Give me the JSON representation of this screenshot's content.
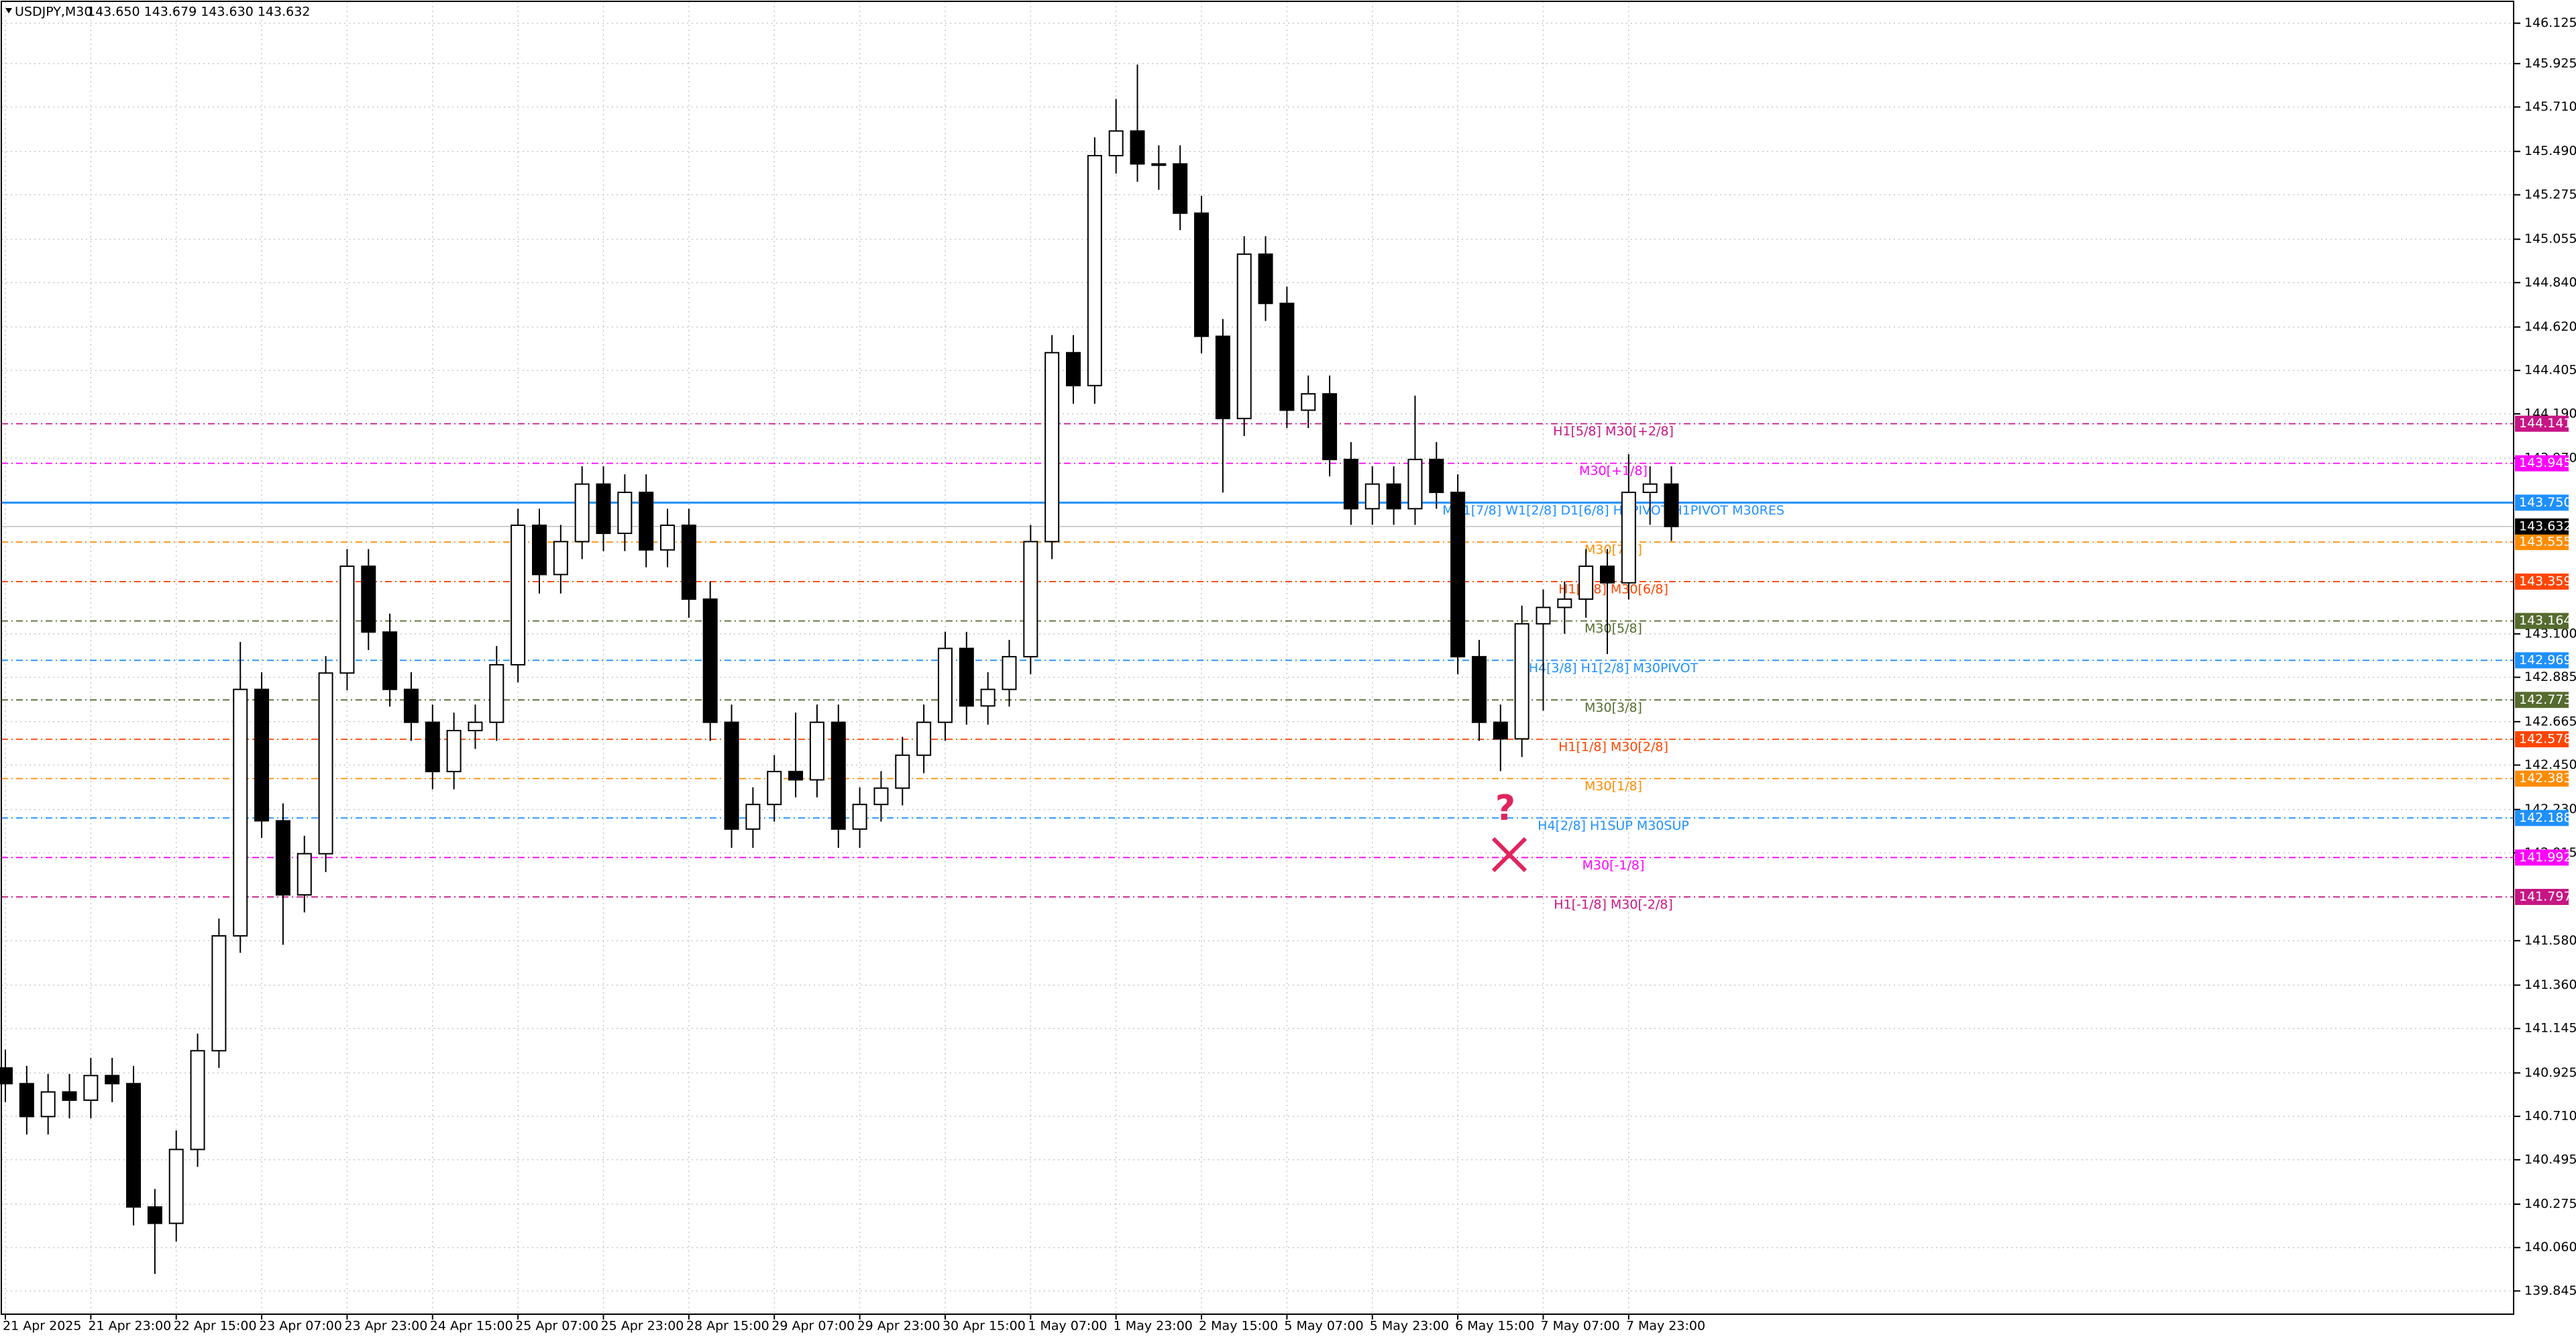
{
  "chart_data": {
    "type": "candlestick",
    "title": "USDJPY,M30",
    "header_prices": "143.650 143.679 143.630 143.632",
    "ylim": [
      139.73,
      146.24
    ],
    "grid": true,
    "bull_color": "#ffffff",
    "bear_color": "#000000",
    "yticks": [
      {
        "value": 146.125,
        "label": "146.125"
      },
      {
        "value": 145.925,
        "label": "145.925"
      },
      {
        "value": 145.71,
        "label": "145.710"
      },
      {
        "value": 145.49,
        "label": "145.490"
      },
      {
        "value": 145.275,
        "label": "145.275"
      },
      {
        "value": 145.055,
        "label": "145.055"
      },
      {
        "value": 144.84,
        "label": "144.840"
      },
      {
        "value": 144.62,
        "label": "144.620"
      },
      {
        "value": 144.405,
        "label": "144.405"
      },
      {
        "value": 144.19,
        "label": "144.190"
      },
      {
        "value": 143.97,
        "label": "143.970"
      },
      {
        "value": 143.1,
        "label": "143.100"
      },
      {
        "value": 142.885,
        "label": "142.885"
      },
      {
        "value": 142.665,
        "label": "142.665"
      },
      {
        "value": 142.45,
        "label": "142.450"
      },
      {
        "value": 142.23,
        "label": "142.230"
      },
      {
        "value": 142.015,
        "label": "142.015"
      },
      {
        "value": 141.58,
        "label": "141.580"
      },
      {
        "value": 141.36,
        "label": "141.360"
      },
      {
        "value": 141.145,
        "label": "141.145"
      },
      {
        "value": 140.925,
        "label": "140.925"
      },
      {
        "value": 140.71,
        "label": "140.710"
      },
      {
        "value": 140.495,
        "label": "140.495"
      },
      {
        "value": 140.275,
        "label": "140.275"
      },
      {
        "value": 140.06,
        "label": "140.060"
      },
      {
        "value": 139.845,
        "label": "139.845"
      }
    ],
    "x_labels": [
      "21 Apr 2025",
      "21 Apr 23:00",
      "22 Apr 15:00",
      "23 Apr 07:00",
      "23 Apr 23:00",
      "24 Apr 15:00",
      "25 Apr 07:00",
      "25 Apr 23:00",
      "28 Apr 15:00",
      "29 Apr 07:00",
      "29 Apr 23:00",
      "30 Apr 15:00",
      "1 May 07:00",
      "1 May 23:00",
      "2 May 15:00",
      "5 May 07:00",
      "5 May 23:00",
      "6 May 15:00",
      "7 May 07:00",
      "7 May 23:00"
    ],
    "open": [
      140.95,
      140.872,
      140.709,
      140.831,
      140.79,
      140.912,
      140.872,
      140.261,
      140.18,
      140.546,
      141.035,
      141.604,
      142.825,
      142.174,
      141.807,
      142.011,
      142.906,
      143.435,
      143.109,
      142.825,
      142.662,
      142.418,
      142.621,
      142.662,
      142.947,
      143.638,
      143.394,
      143.557,
      143.842,
      143.598,
      143.801,
      143.516,
      143.638,
      143.272,
      142.662,
      142.133,
      142.255,
      142.418,
      142.377,
      142.662,
      142.133,
      142.255,
      142.336,
      142.499,
      142.662,
      143.028,
      142.743,
      142.825,
      142.987,
      143.557,
      144.493,
      144.33,
      145.469,
      145.591,
      145.428,
      145.428,
      145.184,
      144.574,
      144.167,
      144.981,
      144.737,
      144.208,
      144.289,
      143.964,
      143.72,
      143.842,
      143.72,
      143.964,
      143.801,
      142.987,
      142.662,
      142.58,
      143.15,
      143.231,
      143.272,
      143.435,
      143.353,
      143.801,
      143.842
    ],
    "high": [
      141.04,
      140.96,
      140.92,
      140.92,
      141.0,
      141.0,
      140.96,
      140.35,
      140.64,
      141.12,
      141.69,
      143.06,
      142.91,
      142.26,
      142.1,
      142.99,
      143.52,
      143.52,
      143.2,
      142.91,
      142.75,
      142.71,
      142.75,
      143.04,
      143.72,
      143.72,
      143.64,
      143.93,
      143.93,
      143.89,
      143.89,
      143.72,
      143.72,
      143.36,
      142.75,
      142.34,
      142.5,
      142.71,
      142.75,
      142.75,
      142.34,
      142.42,
      142.59,
      142.75,
      143.11,
      143.11,
      142.91,
      143.07,
      143.64,
      144.58,
      144.58,
      145.56,
      145.75,
      145.92,
      145.52,
      145.52,
      145.27,
      144.66,
      145.07,
      145.07,
      144.82,
      144.38,
      144.38,
      144.05,
      143.93,
      143.93,
      144.28,
      144.05,
      143.89,
      143.07,
      142.75,
      143.24,
      143.32,
      143.36,
      143.52,
      143.52,
      143.99,
      143.93,
      143.93
    ],
    "low": [
      140.78,
      140.62,
      140.62,
      140.7,
      140.7,
      140.78,
      140.17,
      139.93,
      140.09,
      140.46,
      140.95,
      141.52,
      142.09,
      141.56,
      141.72,
      141.92,
      142.82,
      143.02,
      142.74,
      142.57,
      142.33,
      142.33,
      142.53,
      142.57,
      142.86,
      143.3,
      143.3,
      143.47,
      143.51,
      143.51,
      143.43,
      143.43,
      143.18,
      142.57,
      142.04,
      142.04,
      142.17,
      142.29,
      142.29,
      142.04,
      142.04,
      142.17,
      142.25,
      142.41,
      142.57,
      142.65,
      142.65,
      142.74,
      142.9,
      143.47,
      144.24,
      144.24,
      145.38,
      145.34,
      145.3,
      145.1,
      144.49,
      143.8,
      144.08,
      144.65,
      144.12,
      144.12,
      143.88,
      143.64,
      143.64,
      143.64,
      143.64,
      143.72,
      142.9,
      142.57,
      142.42,
      142.49,
      142.72,
      143.1,
      143.18,
      143.0,
      143.27,
      143.64,
      143.56
    ],
    "close": [
      140.872,
      140.709,
      140.831,
      140.79,
      140.912,
      140.872,
      140.261,
      140.18,
      140.546,
      141.035,
      141.604,
      142.825,
      142.174,
      141.807,
      142.011,
      142.906,
      143.435,
      143.109,
      142.825,
      142.662,
      142.418,
      142.621,
      142.662,
      142.947,
      143.638,
      143.394,
      143.557,
      143.842,
      143.598,
      143.801,
      143.516,
      143.638,
      143.272,
      142.662,
      142.133,
      142.255,
      142.418,
      142.377,
      142.662,
      142.133,
      142.255,
      142.336,
      142.499,
      142.662,
      143.028,
      142.743,
      142.825,
      142.987,
      143.557,
      144.493,
      144.33,
      145.469,
      145.591,
      145.428,
      145.428,
      145.184,
      144.574,
      144.167,
      144.981,
      144.737,
      144.208,
      144.289,
      143.964,
      143.72,
      143.842,
      143.72,
      143.964,
      143.801,
      142.987,
      142.662,
      142.58,
      143.15,
      143.231,
      143.272,
      143.435,
      143.353,
      143.801,
      143.842,
      143.632
    ],
    "current_price": 143.632,
    "current_color": "#000000",
    "levels": [
      {
        "value": 144.141,
        "label": "144.141",
        "text": "H1[5/8] M30[+2/8]",
        "color": "#c71585",
        "solid": false
      },
      {
        "value": 143.945,
        "label": "143.945",
        "text": "M30[+1/8]",
        "color": "#ff00ff",
        "solid": false
      },
      {
        "value": 143.75,
        "label": "143.750",
        "text": "MN1[7/8] W1[2/8] D1[6/8] H4PIVOT H1PIVOT M30RES",
        "color": "#1e90ff",
        "solid": true
      },
      {
        "value": 143.555,
        "label": "143.555",
        "text": "M30[7/8]",
        "color": "#ff8c00",
        "solid": false
      },
      {
        "value": 143.359,
        "label": "143.359",
        "text": "H1[3/8] M30[6/8]",
        "color": "#ff4500",
        "solid": false
      },
      {
        "value": 143.164,
        "label": "143.164",
        "text": "M30[5/8]",
        "color": "#556b2f",
        "solid": false
      },
      {
        "value": 142.969,
        "label": "142.969",
        "text": "H4[3/8] H1[2/8] M30PIVOT",
        "color": "#1e90ff",
        "solid": false
      },
      {
        "value": 142.773,
        "label": "142.773",
        "text": "M30[3/8]",
        "color": "#556b2f",
        "solid": false
      },
      {
        "value": 142.578,
        "label": "142.578",
        "text": "H1[1/8] M30[2/8]",
        "color": "#ff4500",
        "solid": false
      },
      {
        "value": 142.383,
        "label": "142.383",
        "text": "M30[1/8]",
        "color": "#ff8c00",
        "solid": false
      },
      {
        "value": 142.188,
        "label": "142.188",
        "text": "H4[2/8] H1SUP M30SUP",
        "color": "#1e90ff",
        "solid": false
      },
      {
        "value": 141.992,
        "label": "141.992",
        "text": "M30[-1/8]",
        "color": "#ff00ff",
        "solid": false
      },
      {
        "value": 141.797,
        "label": "141.797",
        "text": "H1[-1/8] M30[-2/8]",
        "color": "#c71585",
        "solid": false
      }
    ],
    "annotation": "?"
  }
}
